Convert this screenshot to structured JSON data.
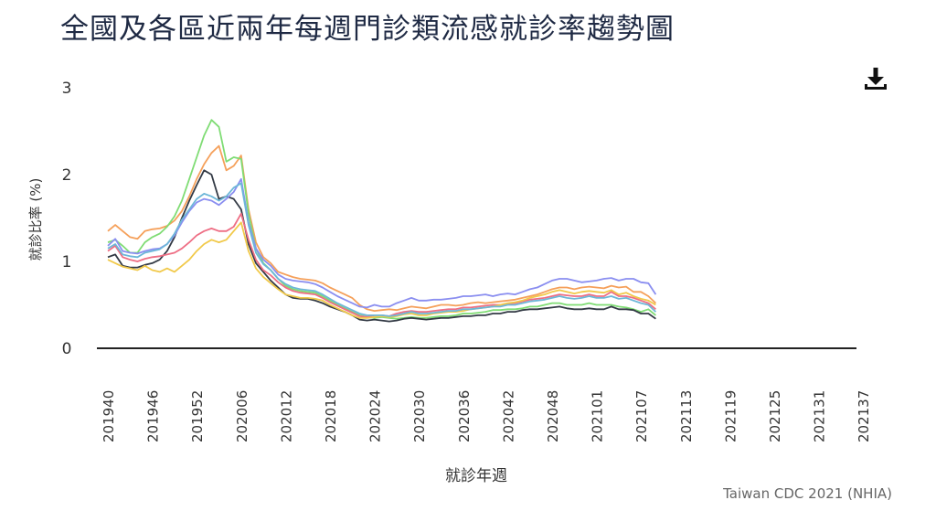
{
  "title": "全國及各區近兩年每週門診類流感就診率趨勢圖",
  "source": "Taiwan CDC 2021 (NHIA)",
  "download_icon": "download-icon",
  "chart_data": {
    "type": "line",
    "xlabel": "就診年週",
    "ylabel": "就診比率 (%)",
    "ylim": [
      0,
      3
    ],
    "yticks": [
      0,
      1,
      2,
      3
    ],
    "grid": false,
    "x_start_index": 0,
    "x_tick_labels": [
      "201940",
      "201946",
      "201952",
      "202006",
      "202012",
      "202018",
      "202024",
      "202030",
      "202036",
      "202042",
      "202048",
      "202101",
      "202107",
      "202113",
      "202119",
      "202125",
      "202131",
      "202137"
    ],
    "x_tick_every": 6,
    "total_slots": 104,
    "series": [
      {
        "color": "#f5a05a",
        "values": [
          1.35,
          1.42,
          1.35,
          1.28,
          1.26,
          1.35,
          1.37,
          1.38,
          1.41,
          1.47,
          1.58,
          1.75,
          1.95,
          2.12,
          2.25,
          2.33,
          2.05,
          2.1,
          2.22,
          1.6,
          1.22,
          1.05,
          0.98,
          0.88,
          0.85,
          0.82,
          0.8,
          0.79,
          0.78,
          0.75,
          0.7,
          0.66,
          0.62,
          0.58,
          0.5,
          0.45,
          0.43,
          0.44,
          0.45,
          0.44,
          0.46,
          0.48,
          0.47,
          0.46,
          0.48,
          0.5,
          0.5,
          0.49,
          0.5,
          0.52,
          0.53,
          0.52,
          0.53,
          0.54,
          0.55,
          0.56,
          0.58,
          0.6,
          0.62,
          0.65,
          0.68,
          0.7,
          0.7,
          0.68,
          0.7,
          0.71,
          0.7,
          0.69,
          0.72,
          0.7,
          0.71,
          0.65,
          0.65,
          0.6,
          0.52
        ]
      },
      {
        "color": "#7fdc74",
        "values": [
          1.22,
          1.25,
          1.18,
          1.1,
          1.1,
          1.22,
          1.28,
          1.32,
          1.4,
          1.52,
          1.7,
          1.95,
          2.2,
          2.45,
          2.63,
          2.55,
          2.15,
          2.2,
          2.18,
          1.55,
          1.15,
          0.98,
          0.9,
          0.8,
          0.72,
          0.68,
          0.66,
          0.65,
          0.64,
          0.6,
          0.55,
          0.5,
          0.46,
          0.42,
          0.38,
          0.36,
          0.35,
          0.36,
          0.35,
          0.34,
          0.35,
          0.36,
          0.35,
          0.35,
          0.36,
          0.37,
          0.37,
          0.38,
          0.4,
          0.4,
          0.41,
          0.42,
          0.44,
          0.44,
          0.45,
          0.45,
          0.46,
          0.48,
          0.48,
          0.5,
          0.52,
          0.52,
          0.5,
          0.5,
          0.5,
          0.52,
          0.5,
          0.5,
          0.5,
          0.48,
          0.47,
          0.45,
          0.42,
          0.45,
          0.38
        ]
      },
      {
        "color": "#333a45",
        "values": [
          1.05,
          1.08,
          0.95,
          0.93,
          0.93,
          0.96,
          0.98,
          1.02,
          1.12,
          1.28,
          1.5,
          1.7,
          1.88,
          2.05,
          2.0,
          1.72,
          1.75,
          1.72,
          1.6,
          1.2,
          0.98,
          0.88,
          0.78,
          0.7,
          0.62,
          0.58,
          0.57,
          0.57,
          0.55,
          0.52,
          0.48,
          0.45,
          0.42,
          0.38,
          0.33,
          0.32,
          0.33,
          0.32,
          0.31,
          0.32,
          0.34,
          0.35,
          0.34,
          0.33,
          0.34,
          0.35,
          0.35,
          0.36,
          0.37,
          0.37,
          0.38,
          0.38,
          0.4,
          0.4,
          0.42,
          0.42,
          0.44,
          0.45,
          0.45,
          0.46,
          0.47,
          0.48,
          0.46,
          0.45,
          0.45,
          0.46,
          0.45,
          0.45,
          0.48,
          0.45,
          0.45,
          0.44,
          0.4,
          0.4,
          0.34
        ]
      },
      {
        "color": "#8a8ef0",
        "values": [
          1.18,
          1.26,
          1.12,
          1.1,
          1.09,
          1.12,
          1.14,
          1.15,
          1.2,
          1.3,
          1.45,
          1.58,
          1.68,
          1.72,
          1.7,
          1.65,
          1.72,
          1.8,
          1.95,
          1.45,
          1.15,
          1.02,
          0.95,
          0.85,
          0.8,
          0.78,
          0.77,
          0.76,
          0.74,
          0.7,
          0.65,
          0.6,
          0.56,
          0.52,
          0.48,
          0.47,
          0.5,
          0.48,
          0.48,
          0.52,
          0.55,
          0.58,
          0.55,
          0.55,
          0.56,
          0.56,
          0.57,
          0.58,
          0.6,
          0.6,
          0.61,
          0.62,
          0.6,
          0.62,
          0.63,
          0.62,
          0.65,
          0.68,
          0.7,
          0.74,
          0.78,
          0.8,
          0.8,
          0.78,
          0.76,
          0.77,
          0.78,
          0.8,
          0.81,
          0.78,
          0.8,
          0.8,
          0.76,
          0.75,
          0.62
        ]
      },
      {
        "color": "#ee6e84",
        "values": [
          1.12,
          1.18,
          1.05,
          1.02,
          1.0,
          1.03,
          1.05,
          1.06,
          1.08,
          1.1,
          1.15,
          1.22,
          1.3,
          1.35,
          1.38,
          1.35,
          1.35,
          1.4,
          1.55,
          1.25,
          1.02,
          0.9,
          0.84,
          0.76,
          0.7,
          0.66,
          0.64,
          0.63,
          0.62,
          0.58,
          0.53,
          0.49,
          0.45,
          0.41,
          0.37,
          0.36,
          0.38,
          0.38,
          0.37,
          0.4,
          0.42,
          0.43,
          0.42,
          0.42,
          0.43,
          0.44,
          0.45,
          0.45,
          0.47,
          0.47,
          0.48,
          0.49,
          0.5,
          0.5,
          0.51,
          0.52,
          0.54,
          0.56,
          0.57,
          0.58,
          0.6,
          0.62,
          0.61,
          0.6,
          0.6,
          0.62,
          0.6,
          0.6,
          0.65,
          0.6,
          0.6,
          0.58,
          0.55,
          0.52,
          0.45
        ]
      },
      {
        "color": "#f1c94a",
        "values": [
          1.02,
          0.98,
          0.94,
          0.92,
          0.9,
          0.95,
          0.9,
          0.88,
          0.92,
          0.88,
          0.95,
          1.02,
          1.12,
          1.2,
          1.25,
          1.22,
          1.25,
          1.35,
          1.45,
          1.12,
          0.92,
          0.82,
          0.75,
          0.68,
          0.62,
          0.6,
          0.58,
          0.58,
          0.57,
          0.55,
          0.5,
          0.46,
          0.42,
          0.38,
          0.35,
          0.35,
          0.36,
          0.37,
          0.36,
          0.37,
          0.39,
          0.4,
          0.38,
          0.38,
          0.4,
          0.41,
          0.42,
          0.42,
          0.43,
          0.45,
          0.46,
          0.47,
          0.48,
          0.5,
          0.52,
          0.53,
          0.55,
          0.58,
          0.6,
          0.62,
          0.65,
          0.67,
          0.65,
          0.63,
          0.65,
          0.66,
          0.65,
          0.64,
          0.67,
          0.62,
          0.64,
          0.6,
          0.57,
          0.55,
          0.5
        ]
      },
      {
        "color": "#6db7d8",
        "values": [
          1.15,
          1.2,
          1.08,
          1.06,
          1.05,
          1.1,
          1.12,
          1.14,
          1.2,
          1.32,
          1.48,
          1.6,
          1.72,
          1.78,
          1.75,
          1.7,
          1.75,
          1.85,
          1.9,
          1.42,
          1.1,
          0.97,
          0.9,
          0.8,
          0.74,
          0.7,
          0.68,
          0.67,
          0.66,
          0.62,
          0.57,
          0.52,
          0.48,
          0.44,
          0.4,
          0.38,
          0.38,
          0.38,
          0.37,
          0.38,
          0.4,
          0.42,
          0.4,
          0.4,
          0.41,
          0.42,
          0.43,
          0.43,
          0.45,
          0.45,
          0.46,
          0.47,
          0.48,
          0.48,
          0.5,
          0.5,
          0.52,
          0.54,
          0.55,
          0.56,
          0.58,
          0.6,
          0.58,
          0.57,
          0.58,
          0.6,
          0.58,
          0.58,
          0.6,
          0.57,
          0.58,
          0.55,
          0.52,
          0.5,
          0.42
        ]
      }
    ]
  }
}
